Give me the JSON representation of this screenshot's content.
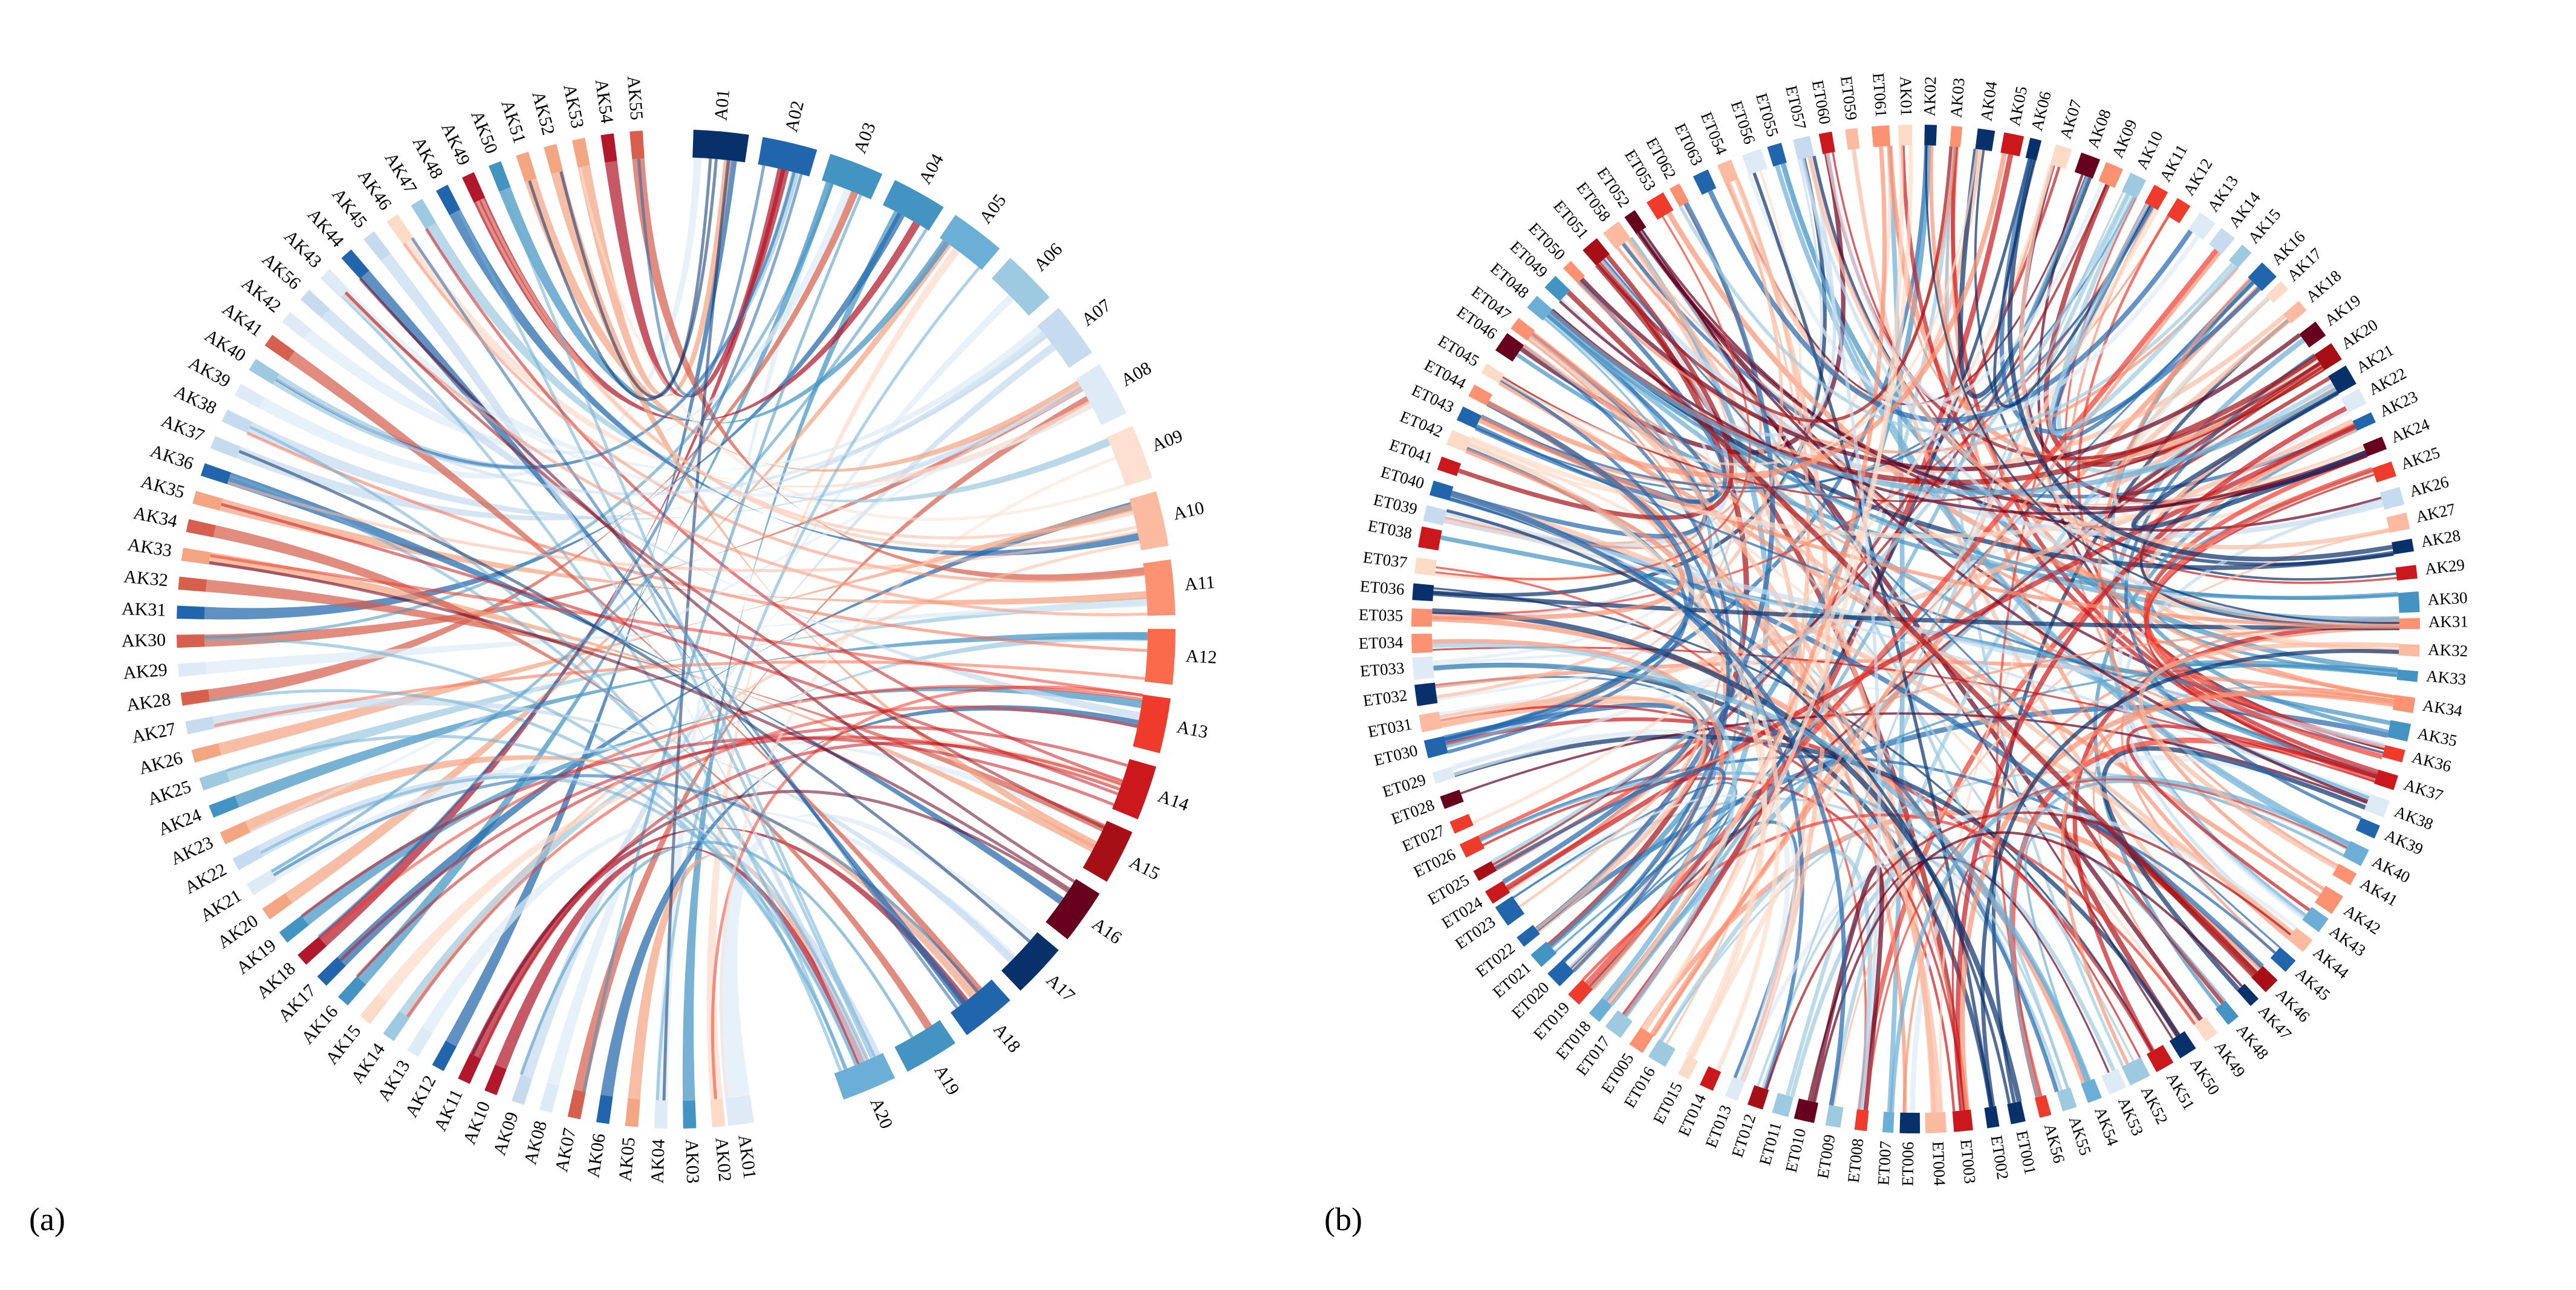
{
  "figure": {
    "panels": [
      {
        "label": "(a)",
        "labels": [
          "A01",
          "A02",
          "A03",
          "A04",
          "A05",
          "A06",
          "A07",
          "A08",
          "A09",
          "A10",
          "A11",
          "A12",
          "A13",
          "A14",
          "A15",
          "A16",
          "A17",
          "A18",
          "A19",
          "A20",
          "AK01",
          "AK02",
          "AK03",
          "AK04",
          "AK05",
          "AK06",
          "AK07",
          "AK08",
          "AK09",
          "AK10",
          "AK11",
          "AK12",
          "AK13",
          "AK14",
          "AK15",
          "AK16",
          "AK17",
          "AK18",
          "AK19",
          "AK20",
          "AK21",
          "AK22",
          "AK23",
          "AK24",
          "AK25",
          "AK26",
          "AK27",
          "AK28",
          "AK29",
          "AK30",
          "AK31",
          "AK32",
          "AK33",
          "AK34",
          "AK35",
          "AK36",
          "AK37",
          "AK38",
          "AK39",
          "AK40",
          "AK41",
          "AK42",
          "AK56",
          "AK43",
          "AK44",
          "AK45",
          "AK46",
          "AK47",
          "AK48",
          "AK49",
          "AK50",
          "AK51",
          "AK52",
          "AK53",
          "AK54",
          "AK55"
        ]
      },
      {
        "label": "(b)",
        "labels": [
          "AK01",
          "AK02",
          "AK03",
          "AK04",
          "AK05",
          "AK06",
          "AK07",
          "AK08",
          "AK09",
          "AK10",
          "AK11",
          "AK12",
          "AK13",
          "AK14",
          "AK15",
          "AK16",
          "AK17",
          "AK18",
          "AK19",
          "AK20",
          "AK21",
          "AK22",
          "AK23",
          "AK24",
          "AK25",
          "AK26",
          "AK27",
          "AK28",
          "AK29",
          "AK30",
          "AK31",
          "AK32",
          "AK33",
          "AK34",
          "AK35",
          "AK36",
          "AK37",
          "AK38",
          "AK39",
          "AK40",
          "AK41",
          "AK42",
          "AK43",
          "AK44",
          "AK45",
          "AK46",
          "AK47",
          "AK48",
          "AK49",
          "AK50",
          "AK51",
          "AK52",
          "AK53",
          "AK54",
          "AK55",
          "AK56",
          "ET001",
          "ET002",
          "ET003",
          "ET004",
          "ET006",
          "ET007",
          "ET008",
          "ET009",
          "ET010",
          "ET011",
          "ET012",
          "ET013",
          "ET014",
          "ET015",
          "ET016",
          "ET005",
          "ET017",
          "ET018",
          "ET019",
          "ET020",
          "ET021",
          "ET022",
          "ET023",
          "ET024",
          "ET025",
          "ET026",
          "ET027",
          "ET028",
          "ET029",
          "ET030",
          "ET031",
          "ET032",
          "ET033",
          "ET034",
          "ET035",
          "ET036",
          "ET037",
          "ET038",
          "ET039",
          "ET040",
          "ET041",
          "ET042",
          "ET043",
          "ET044",
          "ET045",
          "ET046",
          "ET047",
          "ET048",
          "ET049",
          "ET050",
          "ET051",
          "ET058",
          "ET052",
          "ET053",
          "ET062",
          "ET063",
          "ET054",
          "ET056",
          "ET055",
          "ET057",
          "ET060",
          "ET059",
          "ET061"
        ]
      }
    ],
    "palette": [
      "#08306b",
      "#2166ac",
      "#4393c3",
      "#92c5de",
      "#d1e5f0",
      "#fddbc7",
      "#f4a582",
      "#d6604d",
      "#b2182b",
      "#67001f"
    ]
  }
}
